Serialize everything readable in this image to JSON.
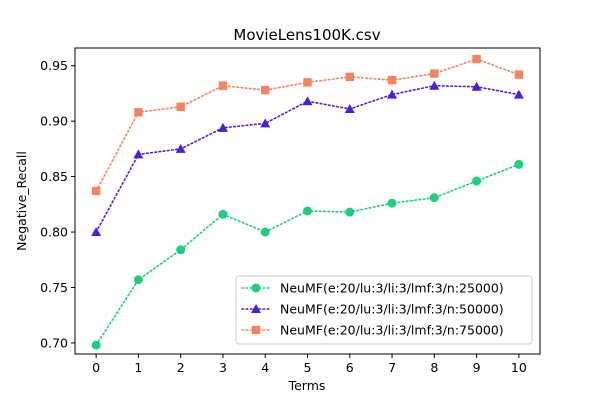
{
  "chart_data": {
    "type": "line",
    "title": "MovieLens100K.csv",
    "xlabel": "Terms",
    "ylabel": "Negative_Recall",
    "x": [
      0,
      1,
      2,
      3,
      4,
      5,
      6,
      7,
      8,
      9,
      10
    ],
    "xlim": [
      -0.5,
      10.5
    ],
    "ylim": [
      0.69,
      0.966
    ],
    "xticks": [
      "0",
      "1",
      "2",
      "3",
      "4",
      "5",
      "6",
      "7",
      "8",
      "9",
      "10"
    ],
    "yticks": [
      0.7,
      0.75,
      0.8,
      0.85,
      0.9,
      0.95
    ],
    "ytick_labels": [
      "0.70",
      "0.75",
      "0.80",
      "0.85",
      "0.90",
      "0.95"
    ],
    "grid": false,
    "legend_position": "bottom-right",
    "series": [
      {
        "name": "NeuMF(e:20/lu:3/li:3/lmf:3/n:25000)",
        "color": "#1ecf7d",
        "marker": "circle",
        "linestyle": "dotted",
        "values": [
          0.698,
          0.757,
          0.784,
          0.816,
          0.8,
          0.819,
          0.818,
          0.826,
          0.831,
          0.846,
          0.861
        ]
      },
      {
        "name": "NeuMF(e:20/lu:3/li:3/lmf:3/n:50000)",
        "color": "#4d1fd8",
        "marker": "triangle",
        "linestyle": "dotted",
        "values": [
          0.8,
          0.87,
          0.875,
          0.894,
          0.898,
          0.918,
          0.911,
          0.924,
          0.932,
          0.931,
          0.924
        ]
      },
      {
        "name": "NeuMF(e:20/lu:3/li:3/lmf:3/n:75000)",
        "color": "#f4845f",
        "marker": "square",
        "linestyle": "dotted",
        "values": [
          0.837,
          0.908,
          0.913,
          0.932,
          0.928,
          0.935,
          0.94,
          0.937,
          0.943,
          0.956,
          0.942
        ]
      }
    ]
  }
}
